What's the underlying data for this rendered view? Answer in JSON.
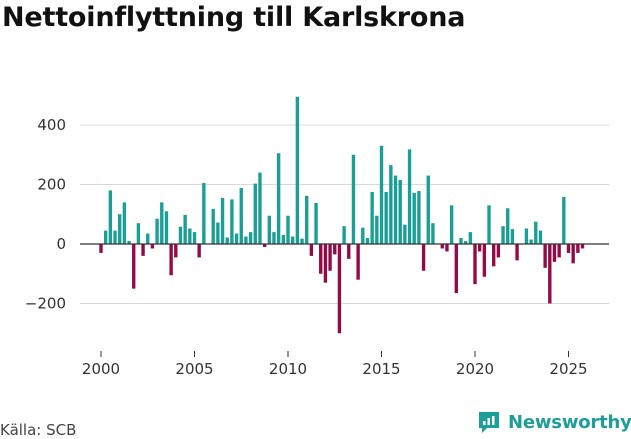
{
  "title": "Nettoinflyttning till Karlskrona",
  "source": "Källa: SCB",
  "brand": {
    "name": "Newsworthy",
    "icon": "newsworthy-logo-icon",
    "color": "#1e9e98"
  },
  "colors": {
    "positive": "#1a9e95",
    "negative": "#930a46",
    "grid": "#d9d9d9",
    "zero": "#333333",
    "text": "#333333"
  },
  "chart_data": {
    "type": "bar",
    "title": "Nettoinflyttning till Karlskrona",
    "xlabel": "",
    "ylabel": "",
    "xlim": [
      1998.5,
      2026.5
    ],
    "ylim": [
      -320,
      520
    ],
    "y_ticks": [
      -200,
      0,
      200,
      400
    ],
    "y_tick_labels": [
      "−200",
      "0",
      "200",
      "400"
    ],
    "x_ticks": [
      2000,
      2005,
      2010,
      2015,
      2020,
      2025
    ],
    "x_tick_labels": [
      "2000",
      "2005",
      "2010",
      "2015",
      "2020",
      "2025"
    ],
    "series": [
      {
        "name": "Nettoinflyttning",
        "start": 2000.0,
        "step": 0.25,
        "values": [
          -30,
          45,
          180,
          45,
          100,
          140,
          10,
          -150,
          70,
          -40,
          35,
          -15,
          85,
          140,
          110,
          -105,
          -45,
          58,
          98,
          52,
          40,
          -45,
          205,
          0,
          118,
          72,
          155,
          22,
          150,
          35,
          188,
          25,
          40,
          203,
          240,
          -10,
          95,
          40,
          305,
          30,
          95,
          25,
          495,
          18,
          162,
          -40,
          138,
          -100,
          -130,
          -90,
          -35,
          -300,
          60,
          -50,
          300,
          -120,
          55,
          20,
          175,
          95,
          330,
          175,
          265,
          230,
          215,
          65,
          318,
          172,
          178,
          -90,
          230,
          70,
          0,
          -15,
          -25,
          130,
          -165,
          20,
          10,
          40,
          -135,
          -25,
          -110,
          130,
          -75,
          -45,
          60,
          120,
          50,
          -55,
          0,
          52,
          15,
          75,
          45,
          -80,
          -200,
          -60,
          -45,
          158,
          -30,
          -65,
          -30,
          -15
        ]
      }
    ]
  }
}
